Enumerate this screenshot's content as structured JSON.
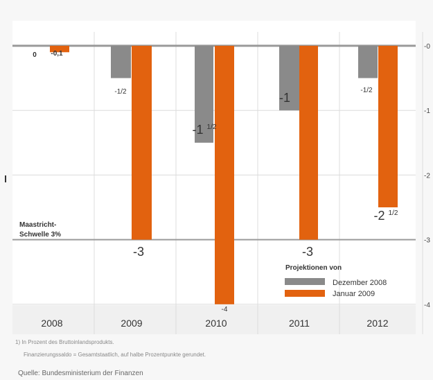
{
  "chart_data": {
    "type": "bar",
    "categories": [
      "2008",
      "2009",
      "2010",
      "2011",
      "2012"
    ],
    "series": [
      {
        "name": "Dezember 2008",
        "values": [
          0,
          -0.5,
          -1.5,
          -1,
          -0.5
        ],
        "color": "#8a8a8a"
      },
      {
        "name": "Januar 2009",
        "values": [
          -0.1,
          -3,
          -4,
          -3,
          -2.5
        ],
        "color": "#e2620f"
      }
    ],
    "labels": {
      "dez": [
        "0",
        "-1/2",
        "-1 1/2",
        "-1",
        "-1/2"
      ],
      "jan": [
        "-0,1",
        "-3",
        "-4",
        "-3",
        "-2 1/2"
      ]
    },
    "ylim": [
      -4.1,
      0
    ],
    "yticks": [
      0,
      -1,
      -2,
      -3,
      -4
    ],
    "ytick_labels": [
      "-0",
      "-1",
      "-2",
      "-3",
      "-4"
    ],
    "threshold": {
      "value": -3,
      "label_line1": "Maastricht-",
      "label_line2": "Schwelle 3%"
    },
    "legend": {
      "title": "Projektionen von",
      "items": [
        "Dezember 2008",
        "Januar 2009"
      ],
      "position": "bottom-right"
    },
    "grid": true
  },
  "footnotes": {
    "note1": "1) In Prozent des Bruttoinlandsprodukts.",
    "note2": "Finanzierungssaldo = Gesamtstaatlich, auf halbe Prozentpunkte gerundet.",
    "source": "Quelle: Bundesministerium der Finanzen"
  }
}
